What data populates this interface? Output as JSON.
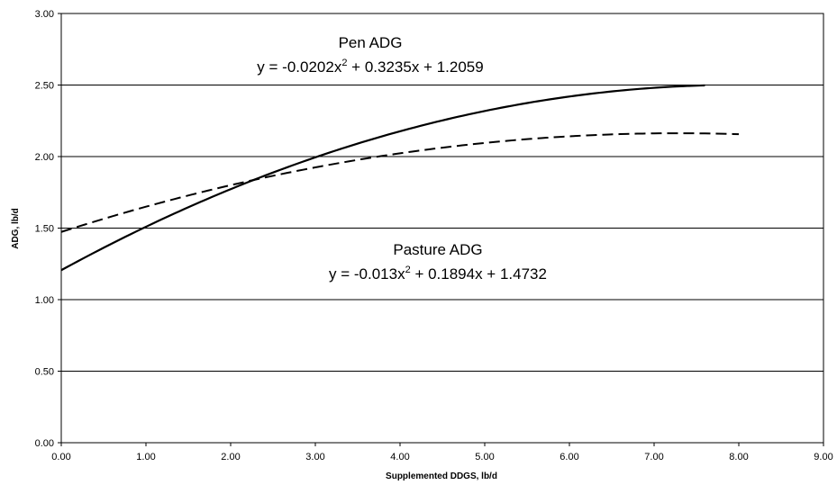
{
  "chart_data": {
    "type": "line",
    "title": "",
    "xlabel": "Supplemented DDGS, lb/d",
    "ylabel": "ADG, lb/d",
    "xlim": [
      0,
      9
    ],
    "ylim": [
      0,
      3
    ],
    "x_ticks": [
      "0.00",
      "1.00",
      "2.00",
      "3.00",
      "4.00",
      "5.00",
      "6.00",
      "7.00",
      "8.00",
      "9.00"
    ],
    "y_ticks": [
      "0.00",
      "0.50",
      "1.00",
      "1.50",
      "2.00",
      "2.50",
      "3.00"
    ],
    "grid": "horizontal",
    "series": [
      {
        "name": "Pen ADG",
        "style": "solid",
        "equation_parts": {
          "a": "y = -0.0202x",
          "exp": "2",
          "b": " + 0.3235x + 1.2059"
        },
        "coefficients": {
          "a": -0.0202,
          "b": 0.3235,
          "c": 1.2059
        },
        "x_range": [
          0,
          7.6
        ]
      },
      {
        "name": "Pasture ADG",
        "style": "dashed",
        "equation_parts": {
          "a": "y = -0.013x",
          "exp": "2",
          "b": " + 0.1894x + 1.4732"
        },
        "coefficients": {
          "a": -0.013,
          "b": 0.1894,
          "c": 1.4732
        },
        "x_range": [
          0,
          8
        ]
      }
    ]
  }
}
